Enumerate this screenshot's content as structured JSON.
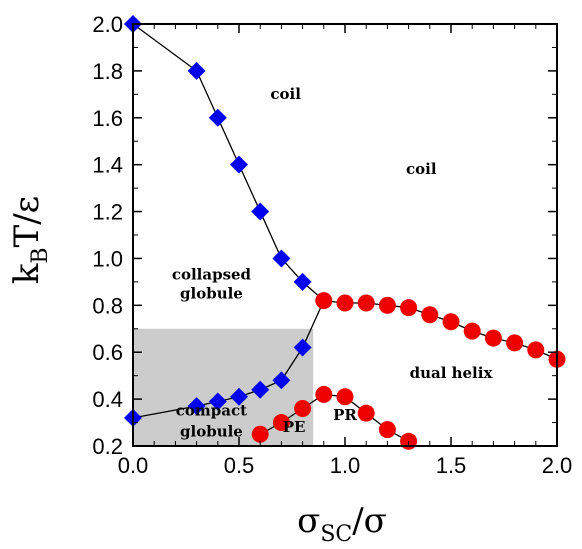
{
  "chart_data": {
    "type": "scatter",
    "xlim": [
      0.0,
      2.0
    ],
    "ylim": [
      0.2,
      2.0
    ],
    "xticks": [
      "0.0",
      "0.5",
      "1.0",
      "1.5",
      "2.0"
    ],
    "yticks": [
      "0.2",
      "0.4",
      "0.6",
      "0.8",
      "1.0",
      "1.2",
      "1.4",
      "1.6",
      "1.8",
      "2.0"
    ],
    "xlabel": {
      "main": "σ",
      "sub": "SC",
      "tail": "/σ"
    },
    "ylabel": {
      "main": "k",
      "sub": "B",
      "tail": "T/ε"
    },
    "shaded_region": {
      "x": [
        0.0,
        0.85
      ],
      "y": [
        0.2,
        0.7
      ],
      "color": "#cccccc"
    },
    "series": [
      {
        "marker": "diamond",
        "color": "#0000ee",
        "points": [
          [
            0.0,
            2.0
          ],
          [
            0.3,
            1.8
          ],
          [
            0.4,
            1.6
          ],
          [
            0.5,
            1.4
          ],
          [
            0.6,
            1.2
          ],
          [
            0.7,
            1.0
          ],
          [
            0.8,
            0.9
          ]
        ]
      },
      {
        "marker": "diamond",
        "color": "#0000ee",
        "points": [
          [
            0.0,
            0.32
          ],
          [
            0.3,
            0.37
          ],
          [
            0.4,
            0.39
          ],
          [
            0.5,
            0.41
          ],
          [
            0.6,
            0.44
          ],
          [
            0.7,
            0.48
          ],
          [
            0.8,
            0.62
          ]
        ]
      },
      {
        "marker": "circle",
        "color": "#ee0000",
        "points": [
          [
            0.9,
            0.82
          ],
          [
            1.0,
            0.81
          ],
          [
            1.1,
            0.81
          ],
          [
            1.2,
            0.8
          ],
          [
            1.3,
            0.79
          ],
          [
            1.4,
            0.76
          ],
          [
            1.5,
            0.73
          ],
          [
            1.6,
            0.69
          ],
          [
            1.7,
            0.66
          ],
          [
            1.8,
            0.64
          ],
          [
            1.9,
            0.61
          ],
          [
            2.0,
            0.57
          ]
        ]
      },
      {
        "marker": "circle",
        "color": "#ee0000",
        "points": [
          [
            0.6,
            0.25
          ],
          [
            0.7,
            0.3
          ],
          [
            0.8,
            0.36
          ],
          [
            0.9,
            0.42
          ],
          [
            1.0,
            0.41
          ],
          [
            1.1,
            0.34
          ],
          [
            1.2,
            0.27
          ],
          [
            1.3,
            0.22
          ]
        ]
      }
    ],
    "boundary_lines": [
      [
        [
          0.0,
          2.0
        ],
        [
          0.3,
          1.8
        ],
        [
          0.4,
          1.6
        ],
        [
          0.5,
          1.4
        ],
        [
          0.6,
          1.2
        ],
        [
          0.7,
          1.0
        ],
        [
          0.8,
          0.9
        ],
        [
          0.9,
          0.82
        ]
      ],
      [
        [
          0.0,
          0.32
        ],
        [
          0.3,
          0.37
        ],
        [
          0.4,
          0.39
        ],
        [
          0.5,
          0.41
        ],
        [
          0.6,
          0.44
        ],
        [
          0.7,
          0.48
        ],
        [
          0.8,
          0.62
        ],
        [
          0.9,
          0.82
        ]
      ]
    ],
    "annotations": [
      {
        "text": "coil",
        "x": 0.72,
        "y": 1.68
      },
      {
        "text": "coil",
        "x": 1.36,
        "y": 1.36
      },
      {
        "text": "collapsed",
        "x": 0.37,
        "y": 0.91
      },
      {
        "text": "globule",
        "x": 0.37,
        "y": 0.83
      },
      {
        "text": "dual helix",
        "x": 1.5,
        "y": 0.49
      },
      {
        "text": "compact",
        "x": 0.37,
        "y": 0.33
      },
      {
        "text": "globule",
        "x": 0.37,
        "y": 0.24
      },
      {
        "text": "PE",
        "x": 0.76,
        "y": 0.26
      },
      {
        "text": "PR",
        "x": 1.0,
        "y": 0.31
      }
    ]
  }
}
